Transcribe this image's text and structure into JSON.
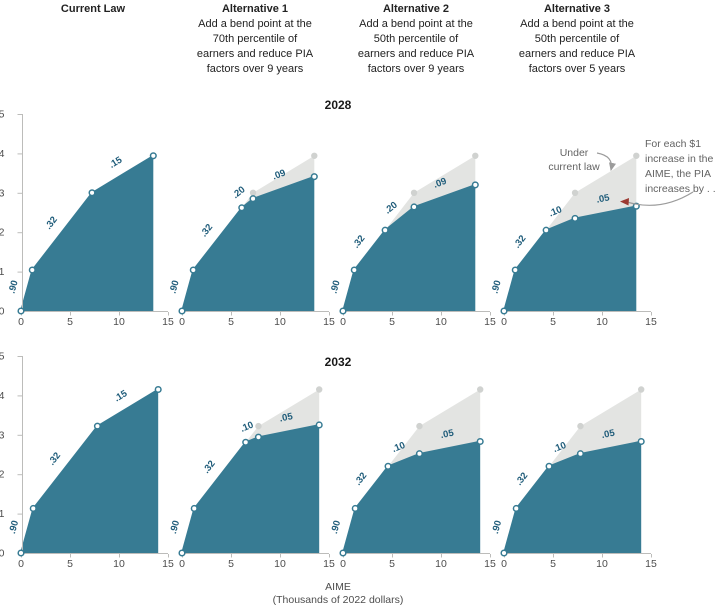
{
  "header": {
    "columns": [
      {
        "title": "Current Law",
        "description": ""
      },
      {
        "title": "Alternative 1",
        "description": "Add a bend point at the\n70th percentile of\nearners and reduce PIA\nfactors over 9 years"
      },
      {
        "title": "Alternative 2",
        "description": "Add a bend point at the\n50th percentile of\nearners and reduce PIA\nfactors over 9 years"
      },
      {
        "title": "Alternative 3",
        "description": "Add a bend point at the\n50th percentile of\nearners and reduce PIA\nfactors over 5 years"
      }
    ]
  },
  "rows": [
    {
      "year": "2028"
    },
    {
      "year": "2032"
    }
  ],
  "axes": {
    "x_ticks": [
      "0",
      "5",
      "10",
      "15"
    ],
    "y_ticks": [
      "0",
      "1",
      "2",
      "3",
      "4",
      "5"
    ],
    "x_max": 15,
    "y_max": 5,
    "xlabel": "AIME",
    "xlabel_sub": "(Thousands of 2022 dollars)"
  },
  "annotations": {
    "under_current_law": "Under\ncurrent law",
    "for_each_dollar": "For each $1\nincrease in the\nAIME, the PIA\nincreases by . . ."
  },
  "colors": {
    "teal": "#377b93",
    "slope_label": "#1f5c7a",
    "gray_area": "#e3e4e2",
    "gray_marker": "#d0d2d0",
    "axis": "#bcbcba",
    "tick_text": "#4d4d4d",
    "annotation_text": "#636363",
    "arrow": "#9b9b9b",
    "red_arrowhead": "#9c3a32"
  },
  "chart_data": [
    {
      "type": "area",
      "year": "2028",
      "scenario": "Current Law",
      "xlabel": "AIME (thousands of 2022 dollars)",
      "xlim": [
        0,
        15
      ],
      "ylim": [
        0,
        5
      ],
      "points": [
        [
          0,
          0
        ],
        [
          1.15,
          1.04
        ],
        [
          7.25,
          3.0
        ],
        [
          13.5,
          3.94
        ]
      ],
      "pia_factors": [
        ".90",
        ".32",
        ".15"
      ],
      "current_law_points": null,
      "has_annotations": false
    },
    {
      "type": "area",
      "year": "2028",
      "scenario": "Alternative 1",
      "xlim": [
        0,
        15
      ],
      "ylim": [
        0,
        5
      ],
      "points": [
        [
          0,
          0
        ],
        [
          1.15,
          1.04
        ],
        [
          6.1,
          2.62
        ],
        [
          7.25,
          2.85
        ],
        [
          13.5,
          3.41
        ]
      ],
      "pia_factors": [
        ".90",
        ".32",
        ".20",
        ".09"
      ],
      "current_law_points": [
        [
          6.1,
          2.62
        ],
        [
          7.25,
          3.0
        ],
        [
          13.5,
          3.94
        ]
      ],
      "has_annotations": false
    },
    {
      "type": "area",
      "year": "2028",
      "scenario": "Alternative 2",
      "xlim": [
        0,
        15
      ],
      "ylim": [
        0,
        5
      ],
      "points": [
        [
          0,
          0
        ],
        [
          1.15,
          1.04
        ],
        [
          4.3,
          2.05
        ],
        [
          7.25,
          2.64
        ],
        [
          13.5,
          3.2
        ]
      ],
      "pia_factors": [
        ".90",
        ".32",
        ".20",
        ".09"
      ],
      "current_law_points": [
        [
          4.3,
          2.05
        ],
        [
          7.25,
          3.0
        ],
        [
          13.5,
          3.94
        ]
      ],
      "has_annotations": false
    },
    {
      "type": "area",
      "year": "2028",
      "scenario": "Alternative 3",
      "xlim": [
        0,
        15
      ],
      "ylim": [
        0,
        5
      ],
      "points": [
        [
          0,
          0
        ],
        [
          1.15,
          1.04
        ],
        [
          4.3,
          2.05
        ],
        [
          7.25,
          2.35
        ],
        [
          13.5,
          2.66
        ]
      ],
      "pia_factors": [
        ".90",
        ".32",
        ".10",
        ".05"
      ],
      "current_law_points": [
        [
          4.3,
          2.05
        ],
        [
          7.25,
          3.0
        ],
        [
          13.5,
          3.94
        ]
      ],
      "has_annotations": true
    },
    {
      "type": "area",
      "year": "2032",
      "scenario": "Current Law",
      "xlim": [
        0,
        15
      ],
      "ylim": [
        0,
        5
      ],
      "points": [
        [
          0,
          0
        ],
        [
          1.25,
          1.13
        ],
        [
          7.8,
          3.22
        ],
        [
          14,
          4.15
        ]
      ],
      "pia_factors": [
        ".90",
        ".32",
        ".15"
      ],
      "current_law_points": null,
      "has_annotations": false
    },
    {
      "type": "area",
      "year": "2032",
      "scenario": "Alternative 1",
      "xlim": [
        0,
        15
      ],
      "ylim": [
        0,
        5
      ],
      "points": [
        [
          0,
          0
        ],
        [
          1.25,
          1.13
        ],
        [
          6.5,
          2.81
        ],
        [
          7.8,
          2.94
        ],
        [
          14,
          3.25
        ]
      ],
      "pia_factors": [
        ".90",
        ".32",
        ".10",
        ".05"
      ],
      "current_law_points": [
        [
          6.5,
          2.81
        ],
        [
          7.8,
          3.22
        ],
        [
          14,
          4.15
        ]
      ],
      "has_annotations": false
    },
    {
      "type": "area",
      "year": "2032",
      "scenario": "Alternative 2",
      "xlim": [
        0,
        15
      ],
      "ylim": [
        0,
        5
      ],
      "points": [
        [
          0,
          0
        ],
        [
          1.25,
          1.13
        ],
        [
          4.6,
          2.2
        ],
        [
          7.8,
          2.52
        ],
        [
          14,
          2.83
        ]
      ],
      "pia_factors": [
        ".90",
        ".32",
        ".10",
        ".05"
      ],
      "current_law_points": [
        [
          4.6,
          2.2
        ],
        [
          7.8,
          3.22
        ],
        [
          14,
          4.15
        ]
      ],
      "has_annotations": false
    },
    {
      "type": "area",
      "year": "2032",
      "scenario": "Alternative 3",
      "xlim": [
        0,
        15
      ],
      "ylim": [
        0,
        5
      ],
      "points": [
        [
          0,
          0
        ],
        [
          1.25,
          1.13
        ],
        [
          4.6,
          2.2
        ],
        [
          7.8,
          2.52
        ],
        [
          14,
          2.83
        ]
      ],
      "pia_factors": [
        ".90",
        ".32",
        ".10",
        ".05"
      ],
      "current_law_points": [
        [
          4.6,
          2.2
        ],
        [
          7.8,
          3.22
        ],
        [
          14,
          4.15
        ]
      ],
      "has_annotations": false
    }
  ]
}
